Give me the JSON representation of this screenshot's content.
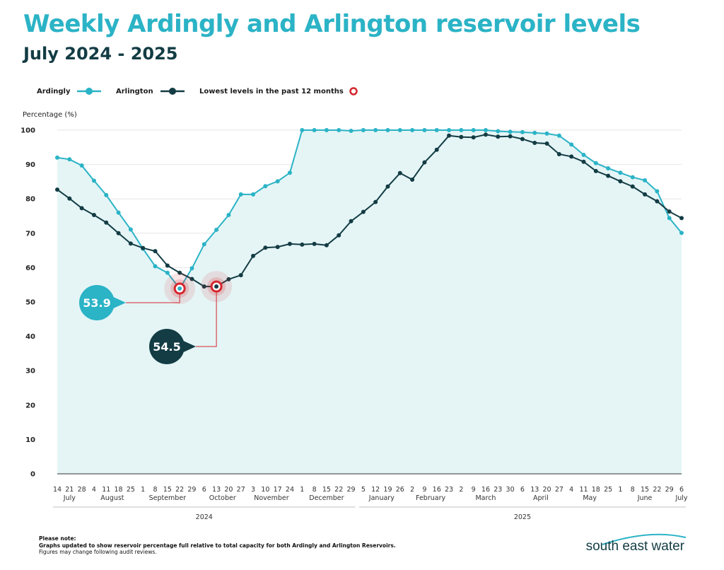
{
  "title": "Weekly Ardingly and Arlington reservoir levels",
  "subtitle": "July 2024 - 2025",
  "legend": {
    "ardingly": "Ardingly",
    "arlington": "Arlington",
    "lowest": "Lowest levels in the past 12 months"
  },
  "colors": {
    "ardingly": "#2bb3c6",
    "arlington": "#133c44",
    "lowest": "#d4262e",
    "area": "#e5f5f6"
  },
  "note": {
    "heading": "Please note:",
    "line1": "Graphs updated to show reservoir percentage full relative to total capacity for both Ardingly and Arlington Reservoirs.",
    "line2": "Figures may change following audit reviews."
  },
  "brand": "south east water",
  "chart_data": {
    "type": "line",
    "ylabel": "Percentage (%)",
    "ylim": [
      0,
      100
    ],
    "yticks": [
      0,
      10,
      20,
      30,
      40,
      50,
      60,
      70,
      80,
      90,
      100
    ],
    "grid": true,
    "legend_position": "top-left",
    "x_day_labels": [
      "14",
      "21",
      "28",
      "4",
      "11",
      "18",
      "25",
      "1",
      "8",
      "15",
      "22",
      "29",
      "6",
      "13",
      "20",
      "27",
      "3",
      "10",
      "17",
      "24",
      "1",
      "8",
      "15",
      "22",
      "29",
      "5",
      "12",
      "19",
      "26",
      "2",
      "9",
      "16",
      "23",
      "2",
      "9",
      "16",
      "23",
      "30",
      "6",
      "13",
      "20",
      "27",
      "4",
      "11",
      "18",
      "25",
      "1",
      "8",
      "15",
      "22",
      "29",
      "6"
    ],
    "months": [
      {
        "label": "July",
        "start": 0,
        "end": 2
      },
      {
        "label": "August",
        "start": 3,
        "end": 6
      },
      {
        "label": "September",
        "start": 7,
        "end": 11
      },
      {
        "label": "October",
        "start": 12,
        "end": 15
      },
      {
        "label": "November",
        "start": 16,
        "end": 19
      },
      {
        "label": "December",
        "start": 20,
        "end": 24
      },
      {
        "label": "January",
        "start": 25,
        "end": 28
      },
      {
        "label": "February",
        "start": 29,
        "end": 32
      },
      {
        "label": "March",
        "start": 33,
        "end": 37
      },
      {
        "label": "April",
        "start": 38,
        "end": 41
      },
      {
        "label": "May",
        "start": 42,
        "end": 45
      },
      {
        "label": "June",
        "start": 46,
        "end": 50
      },
      {
        "label": "July",
        "start": 51,
        "end": 51
      }
    ],
    "years": [
      {
        "label": "2024",
        "start": 0,
        "end": 24
      },
      {
        "label": "2025",
        "start": 25,
        "end": 51
      }
    ],
    "series": [
      {
        "name": "Ardingly",
        "values": [
          92.0,
          91.5,
          89.7,
          85.3,
          81.1,
          76.0,
          71.1,
          65.5,
          60.4,
          58.5,
          53.9,
          59.8,
          66.8,
          71.0,
          75.3,
          81.3,
          81.3,
          83.7,
          85.1,
          87.6,
          100,
          100,
          100,
          100,
          99.8,
          100,
          100,
          100,
          100,
          100,
          100,
          100,
          100,
          100,
          100,
          100,
          99.7,
          99.5,
          99.4,
          99.2,
          99.0,
          98.4,
          95.8,
          92.8,
          90.4,
          88.9,
          87.6,
          86.3,
          85.4,
          82.2,
          74.4,
          70.1
        ]
      },
      {
        "name": "Arlington",
        "values": [
          82.7,
          80.1,
          77.3,
          75.3,
          73.1,
          70.0,
          67.0,
          65.7,
          64.8,
          60.6,
          58.5,
          56.7,
          54.5,
          54.5,
          56.6,
          57.8,
          63.4,
          65.8,
          66.0,
          66.9,
          66.7,
          66.9,
          66.5,
          69.4,
          73.5,
          76.2,
          79.1,
          83.6,
          87.5,
          85.6,
          90.6,
          94.3,
          98.4,
          98.0,
          97.9,
          98.7,
          98.1,
          98.2,
          97.4,
          96.3,
          96.1,
          93.0,
          92.3,
          90.8,
          88.1,
          86.7,
          85.1,
          83.6,
          81.3,
          79.3,
          76.3,
          74.4
        ]
      }
    ],
    "annotations": [
      {
        "series": "Ardingly",
        "index": 10,
        "value": "53.9"
      },
      {
        "series": "Arlington",
        "index": 13,
        "value": "54.5"
      }
    ]
  }
}
